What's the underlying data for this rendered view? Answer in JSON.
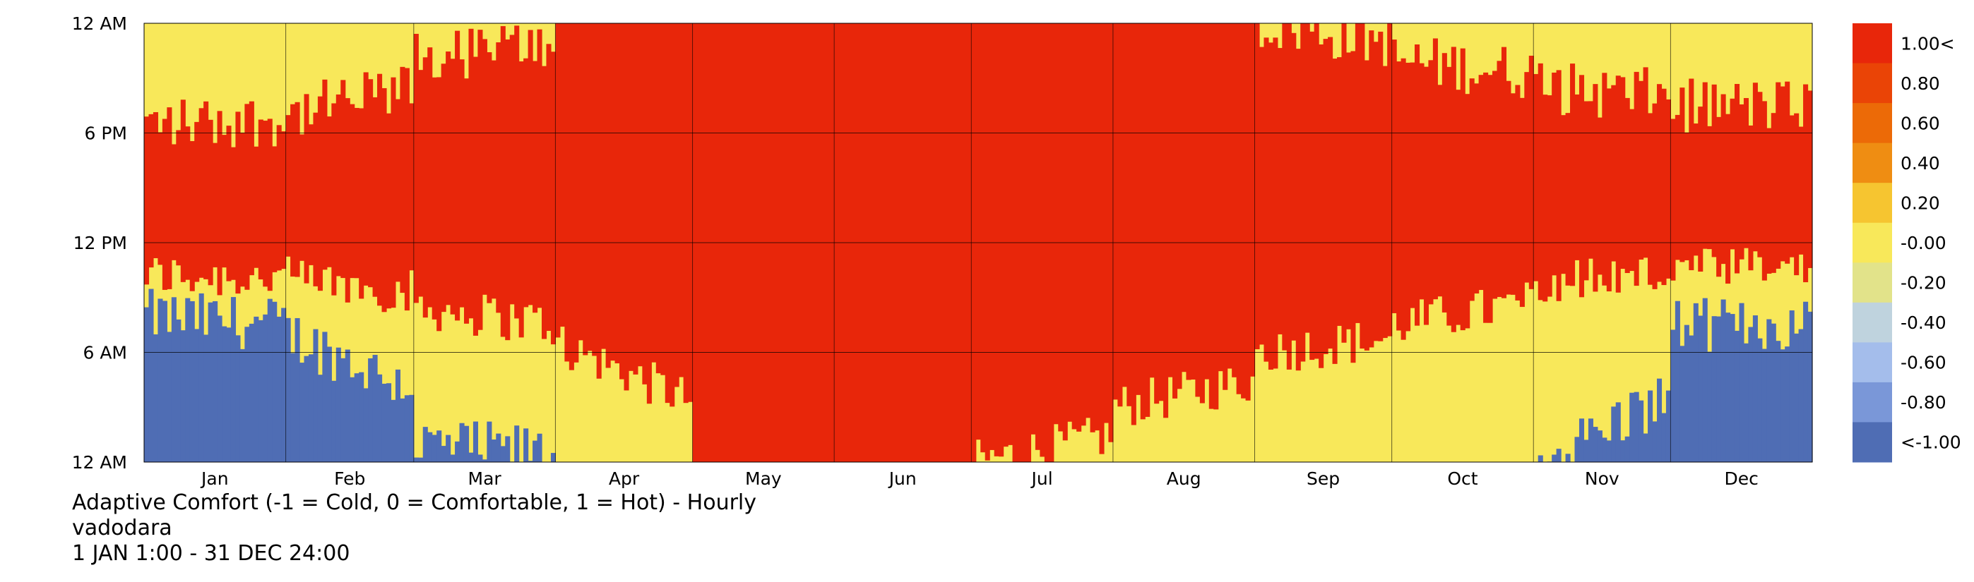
{
  "chart_data": {
    "type": "heatmap",
    "title": "Adaptive Comfort (-1 = Cold, 0 = Comfortable, 1 = Hot) - Hourly",
    "location": "vadodara",
    "period": "1 JAN 1:00 - 31 DEC 24:00",
    "x_tick_labels": [
      "Jan",
      "Feb",
      "Mar",
      "Apr",
      "May",
      "Jun",
      "Jul",
      "Aug",
      "Sep",
      "Oct",
      "Nov",
      "Dec"
    ],
    "month_days": [
      31,
      28,
      31,
      30,
      31,
      30,
      31,
      31,
      30,
      31,
      30,
      31
    ],
    "y_tick_labels": [
      "12 AM",
      "6 AM",
      "12 PM",
      "6 PM",
      "12 AM"
    ],
    "y_range_hours": [
      0,
      24
    ],
    "grid": true,
    "legend_position": "right",
    "legend": [
      {
        "label": "1.00<",
        "color": "#e8260a"
      },
      {
        "label": "0.80",
        "color": "#ea4406"
      },
      {
        "label": "0.60",
        "color": "#ec6a07"
      },
      {
        "label": "0.40",
        "color": "#ef8d12"
      },
      {
        "label": "0.20",
        "color": "#f6c530"
      },
      {
        "label": "-0.00",
        "color": "#f8e85a"
      },
      {
        "label": "-0.20",
        "color": "#e2e38a"
      },
      {
        "label": "-0.40",
        "color": "#bfd3de"
      },
      {
        "label": "-0.60",
        "color": "#a4bdeb"
      },
      {
        "label": "-0.80",
        "color": "#7a97d8"
      },
      {
        "label": "<-1.00",
        "color": "#4f6db4"
      }
    ],
    "colors": {
      "hot": "#e8260a",
      "comfortable": "#f8e85a",
      "cold": "#4f6db4"
    },
    "monthly_profile": [
      {
        "month": "Jan",
        "cold_until_hour": 8.0,
        "hot_from_hour": 10.2,
        "hot_until_hour": 18.5
      },
      {
        "month": "Feb",
        "cold_until_hour": 7.0,
        "hot_from_hour": 10.0,
        "hot_until_hour": 19.0
      },
      {
        "month": "Mar",
        "cold_until_hour": 1.0,
        "hot_from_hour": 8.5,
        "hot_until_hour": 22.0
      },
      {
        "month": "Apr",
        "cold_until_hour": 0.0,
        "hot_from_hour": 6.5,
        "hot_until_hour": 24.0
      },
      {
        "month": "May",
        "cold_until_hour": 0.0,
        "hot_from_hour": 0.0,
        "hot_until_hour": 24.0
      },
      {
        "month": "Jun",
        "cold_until_hour": 0.0,
        "hot_from_hour": 0.0,
        "hot_until_hour": 24.0
      },
      {
        "month": "Jul",
        "cold_until_hour": 0.0,
        "hot_from_hour": 0.0,
        "hot_until_hour": 24.0
      },
      {
        "month": "Aug",
        "cold_until_hour": 0.0,
        "hot_from_hour": 3.0,
        "hot_until_hour": 24.0
      },
      {
        "month": "Sep",
        "cold_until_hour": 0.0,
        "hot_from_hour": 6.0,
        "hot_until_hour": 24.0
      },
      {
        "month": "Oct",
        "cold_until_hour": 0.0,
        "hot_from_hour": 7.5,
        "hot_until_hour": 22.0
      },
      {
        "month": "Nov",
        "cold_until_hour": 0.0,
        "hot_from_hour": 10.0,
        "hot_until_hour": 20.5
      },
      {
        "month": "Dec",
        "cold_until_hour": 7.5,
        "hot_from_hour": 10.5,
        "hot_until_hour": 19.5
      }
    ]
  }
}
